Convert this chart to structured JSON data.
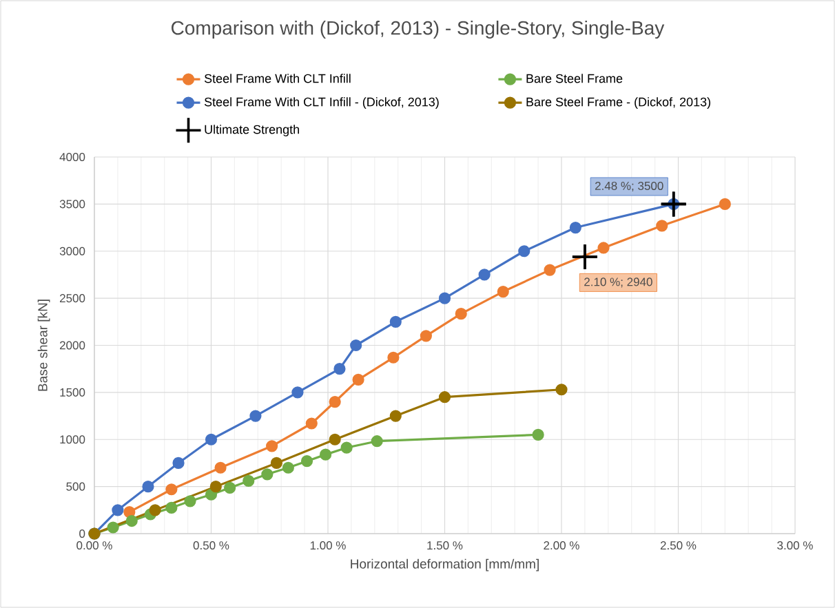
{
  "chart_data": {
    "type": "line",
    "title": "Comparison with (Dickof, 2013) - Single-Story, Single-Bay",
    "xlabel": "Horizontal deformation [mm/mm]",
    "ylabel": "Base shear [kN]",
    "series": [
      {
        "name": "Steel Frame With CLT Infill",
        "color": "#ed7d31",
        "x": [
          0.15,
          0.33,
          0.54,
          0.76,
          0.93,
          1.03,
          1.13,
          1.28,
          1.42,
          1.57,
          1.75,
          1.95,
          2.18,
          2.43,
          2.7
        ],
        "values": [
          230,
          470,
          700,
          930,
          1170,
          1400,
          1635,
          1870,
          2100,
          2335,
          2570,
          2800,
          3035,
          3270,
          3500
        ]
      },
      {
        "name": "Bare Steel Frame",
        "color": "#70ad47",
        "x": [
          0,
          0.08,
          0.16,
          0.24,
          0.33,
          0.41,
          0.5,
          0.58,
          0.66,
          0.74,
          0.83,
          0.91,
          0.99,
          1.08,
          1.21,
          1.9
        ],
        "values": [
          0,
          66,
          135,
          205,
          275,
          345,
          415,
          487,
          560,
          630,
          700,
          770,
          840,
          913,
          982,
          1050
        ]
      },
      {
        "name": "Steel Frame With CLT Infill - (Dickof, 2013)",
        "color": "#4472c4",
        "x": [
          0,
          0.1,
          0.23,
          0.36,
          0.5,
          0.69,
          0.87,
          1.05,
          1.12,
          1.29,
          1.5,
          1.67,
          1.84,
          2.06,
          2.48
        ],
        "values": [
          0,
          250,
          500,
          750,
          1000,
          1250,
          1500,
          1750,
          2000,
          2250,
          2500,
          2750,
          3000,
          3250,
          3500
        ]
      },
      {
        "name": "Bare Steel Frame - (Dickof, 2013)",
        "color": "#997300",
        "x": [
          0,
          0.26,
          0.52,
          0.78,
          1.03,
          1.29,
          1.5,
          2.0
        ],
        "values": [
          0,
          250,
          500,
          750,
          1000,
          1250,
          1450,
          1530
        ]
      },
      {
        "name": "Ultimate Strength",
        "type": "scatter",
        "marker": "cross",
        "color": "#000000",
        "x": [
          2.1,
          2.48
        ],
        "values": [
          2940,
          3500
        ],
        "value_labels": [
          "2.10 %; 2940",
          "2.48 %; 3500"
        ]
      }
    ],
    "xlim": [
      0,
      3
    ],
    "ylim": [
      0,
      4000
    ],
    "xticks": [
      {
        "value": 0,
        "label": "0.00 %"
      },
      {
        "value": 0.5,
        "label": "0.50 %"
      },
      {
        "value": 1,
        "label": "1.00 %"
      },
      {
        "value": 1.5,
        "label": "1.50 %"
      },
      {
        "value": 2,
        "label": "2.00 %"
      },
      {
        "value": 2.5,
        "label": "2.50 %"
      },
      {
        "value": 3,
        "label": "3.00 %"
      }
    ],
    "yticks": [
      0,
      500,
      1000,
      1500,
      2000,
      2500,
      3000,
      3500,
      4000
    ],
    "grid": true,
    "legend": "top",
    "marker": "circle",
    "line_style": "solid"
  }
}
